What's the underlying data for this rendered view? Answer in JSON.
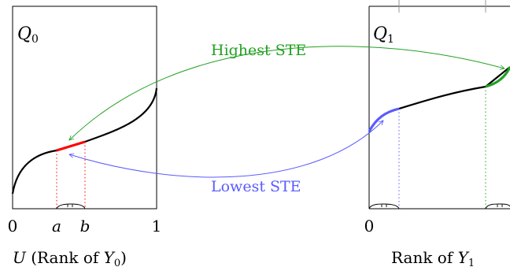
{
  "left_panel": {
    "title": "Q",
    "title_sub": "0",
    "tick_0": "0",
    "tick_a": "a",
    "tick_b": "b",
    "tick_1": "1",
    "xlabel_prefix": "U",
    "xlabel_text": " (Rank of ",
    "xlabel_var": "Y",
    "xlabel_sub": "0",
    "xlabel_suffix": ")"
  },
  "right_panel": {
    "title": "Q",
    "title_sub": "1",
    "tick_0": "0",
    "xlabel_text": "Rank of ",
    "xlabel_var": "Y",
    "xlabel_sub": "1"
  },
  "annotations": {
    "highest": "Highest STE",
    "lowest": "Lowest STE"
  },
  "colors": {
    "curve": "#000000",
    "highlight_left": "#ff0000",
    "highest": "#22a022",
    "lowest": "#5a5aff"
  }
}
